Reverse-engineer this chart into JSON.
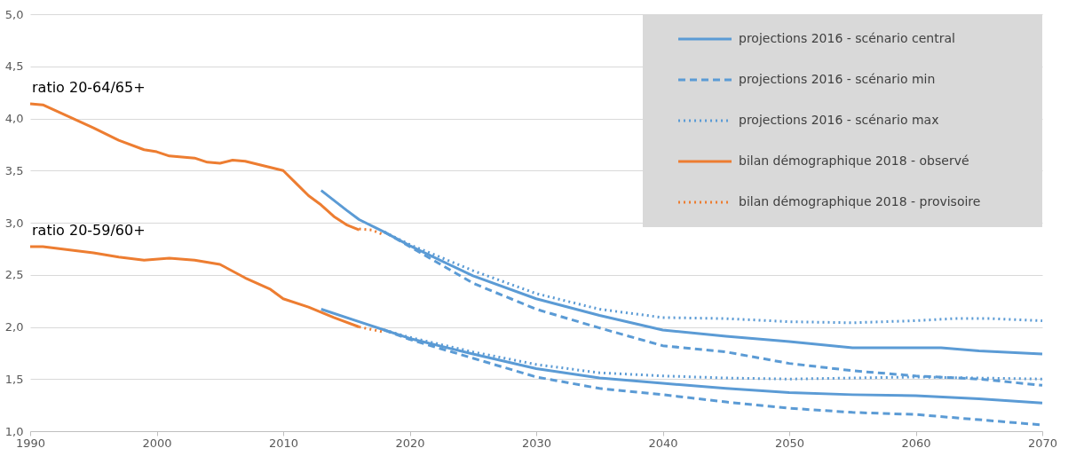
{
  "chart_data": {
    "type": "line",
    "xlim": [
      1990,
      2070
    ],
    "xticks": [
      1990,
      2000,
      2010,
      2020,
      2030,
      2040,
      2050,
      2060,
      2070
    ],
    "ylim": [
      1.0,
      5.0
    ],
    "yticks": [
      {
        "value": 1.0,
        "label": "1,0"
      },
      {
        "value": 1.5,
        "label": "1,5"
      },
      {
        "value": 2.0,
        "label": "2,0"
      },
      {
        "value": 2.5,
        "label": "2,5"
      },
      {
        "value": 3.0,
        "label": "3,0"
      },
      {
        "value": 3.5,
        "label": "3,5"
      },
      {
        "value": 4.0,
        "label": "4,0"
      },
      {
        "value": 4.5,
        "label": "4,5"
      },
      {
        "value": 5.0,
        "label": "5,0"
      }
    ],
    "grid": "y",
    "legend": "top right",
    "annotations": [
      {
        "text": "ratio 20-64/65+",
        "x": 1990,
        "y": 4.14
      },
      {
        "text": "ratio 20-59/60+",
        "x": 1990,
        "y": 2.77
      }
    ],
    "series": [
      {
        "name": "projections 2016 - scénario central",
        "color": "#5b9bd5",
        "line_style": "solid",
        "x": [
          2013,
          2015,
          2016,
          2018,
          2020,
          2025,
          2030,
          2035,
          2040,
          2045,
          2050,
          2055,
          2060,
          2062,
          2065,
          2070
        ],
        "values": [
          3.31,
          3.12,
          3.03,
          2.91,
          2.78,
          2.49,
          2.27,
          2.11,
          1.97,
          1.91,
          1.86,
          1.8,
          1.8,
          1.8,
          1.77,
          1.74
        ]
      },
      {
        "name": "projections 2016 - scénario min",
        "color": "#5b9bd5",
        "line_style": "dashed",
        "x": [
          2018,
          2020,
          2025,
          2030,
          2035,
          2040,
          2045,
          2050,
          2055,
          2060,
          2065,
          2070
        ],
        "values": [
          2.91,
          2.77,
          2.42,
          2.17,
          1.99,
          1.82,
          1.76,
          1.65,
          1.58,
          1.53,
          1.5,
          1.44
        ]
      },
      {
        "name": "projections 2016 - scénario max",
        "color": "#5b9bd5",
        "line_style": "dotted",
        "x": [
          2018,
          2020,
          2025,
          2030,
          2035,
          2040,
          2045,
          2050,
          2055,
          2060,
          2063,
          2066,
          2070
        ],
        "values": [
          2.91,
          2.79,
          2.54,
          2.32,
          2.17,
          2.09,
          2.08,
          2.05,
          2.04,
          2.06,
          2.08,
          2.08,
          2.06
        ]
      },
      {
        "name": "bilan démographique 2018 - observé",
        "color": "#ed7d31",
        "line_style": "solid",
        "x": [
          1990,
          1991,
          1993,
          1995,
          1997,
          1999,
          2000,
          2001,
          2003,
          2004,
          2005,
          2006,
          2007,
          2008,
          2010,
          2011,
          2012,
          2013,
          2014,
          2015,
          2016
        ],
        "values": [
          4.14,
          4.13,
          4.02,
          3.91,
          3.79,
          3.7,
          3.68,
          3.64,
          3.62,
          3.58,
          3.57,
          3.6,
          3.59,
          3.56,
          3.5,
          3.38,
          3.26,
          3.17,
          3.06,
          2.98,
          2.93
        ]
      },
      {
        "name": "bilan démographique 2018 - provisoire",
        "color": "#ed7d31",
        "line_style": "dotted",
        "x": [
          2016,
          2017,
          2018
        ],
        "values": [
          2.94,
          2.93,
          2.88
        ]
      },
      {
        "color": "#5b9bd5",
        "line_style": "solid",
        "x": [
          2013,
          2016,
          2018,
          2020,
          2025,
          2030,
          2035,
          2040,
          2045,
          2050,
          2055,
          2060,
          2065,
          2070
        ],
        "values": [
          2.17,
          2.05,
          1.97,
          1.89,
          1.74,
          1.6,
          1.51,
          1.46,
          1.41,
          1.37,
          1.35,
          1.34,
          1.31,
          1.27
        ]
      },
      {
        "color": "#5b9bd5",
        "line_style": "dashed",
        "x": [
          2018,
          2020,
          2025,
          2030,
          2035,
          2040,
          2045,
          2050,
          2055,
          2060,
          2065,
          2070
        ],
        "values": [
          1.97,
          1.88,
          1.7,
          1.52,
          1.41,
          1.35,
          1.28,
          1.22,
          1.18,
          1.16,
          1.11,
          1.06
        ]
      },
      {
        "color": "#5b9bd5",
        "line_style": "dotted",
        "x": [
          2018,
          2020,
          2025,
          2030,
          2035,
          2040,
          2045,
          2050,
          2055,
          2060,
          2065,
          2070
        ],
        "values": [
          1.97,
          1.9,
          1.76,
          1.64,
          1.56,
          1.53,
          1.51,
          1.5,
          1.51,
          1.52,
          1.51,
          1.5
        ]
      },
      {
        "color": "#ed7d31",
        "line_style": "solid",
        "x": [
          1990,
          1991,
          1993,
          1995,
          1997,
          1999,
          2001,
          2003,
          2005,
          2007,
          2009,
          2010,
          2012,
          2014,
          2016
        ],
        "values": [
          2.77,
          2.77,
          2.74,
          2.71,
          2.67,
          2.64,
          2.66,
          2.64,
          2.6,
          2.47,
          2.36,
          2.27,
          2.19,
          2.09,
          2.0
        ]
      },
      {
        "color": "#ed7d31",
        "line_style": "dotted",
        "x": [
          2016,
          2018
        ],
        "values": [
          2.0,
          1.95
        ]
      }
    ]
  }
}
